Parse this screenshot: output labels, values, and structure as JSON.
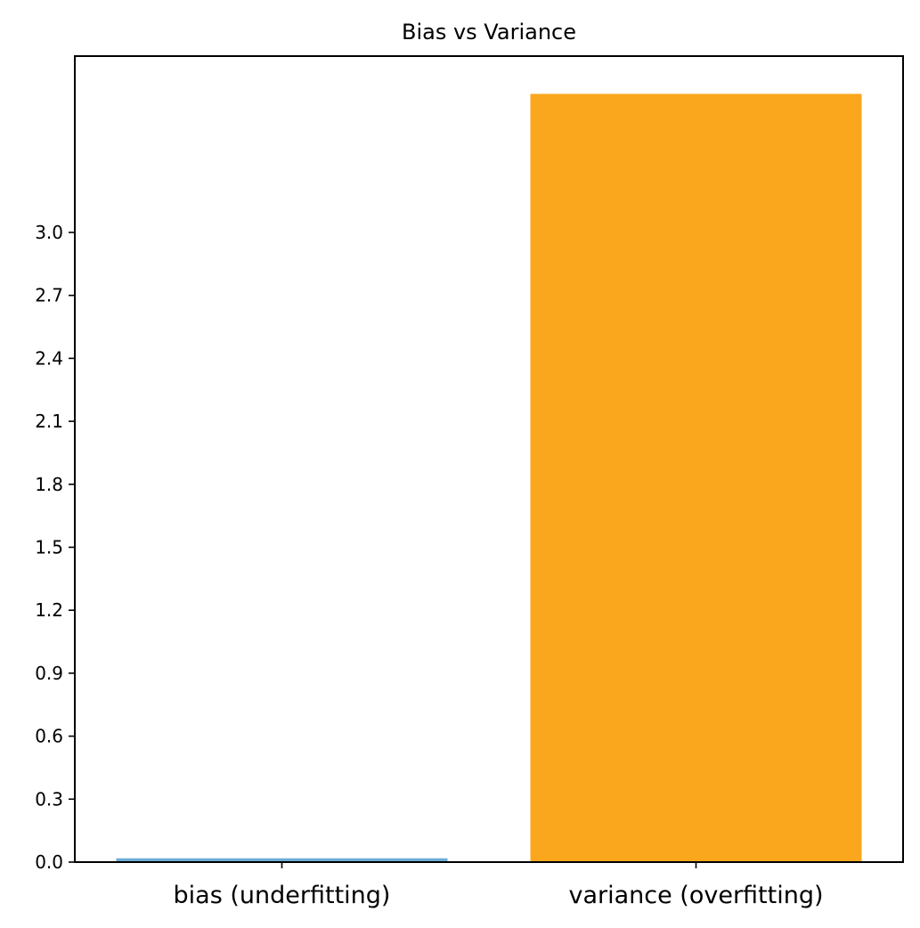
{
  "chart_data": {
    "type": "bar",
    "title": "Bias vs Variance",
    "xlabel": "",
    "ylabel": "",
    "categories": [
      "bias (underfitting)",
      "variance (overfitting)"
    ],
    "values": [
      0.018,
      3.66
    ],
    "colors": [
      "#6baed6",
      "#fba71e"
    ],
    "yticks": [
      "0.0",
      "0.3",
      "0.6",
      "0.9",
      "1.2",
      "1.5",
      "1.8",
      "2.1",
      "2.4",
      "2.7",
      "3.0"
    ],
    "ylim": [
      0,
      3.84
    ],
    "grid": false,
    "legend": false
  }
}
